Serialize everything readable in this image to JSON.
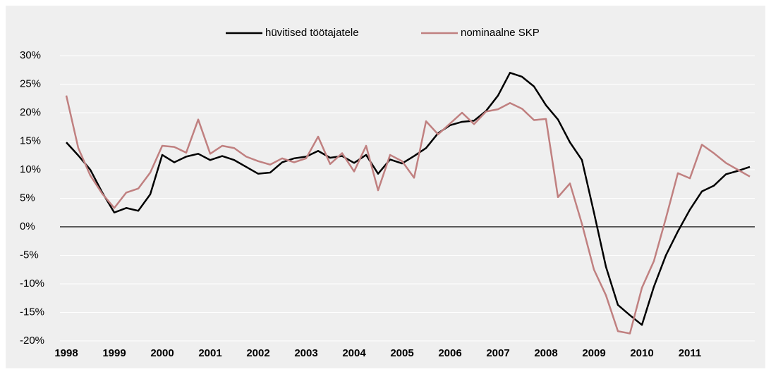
{
  "chart_data": {
    "type": "line",
    "categories": [
      "1998",
      null,
      null,
      null,
      "1999",
      null,
      null,
      null,
      "2000",
      null,
      null,
      null,
      "2001",
      null,
      null,
      null,
      "2002",
      null,
      null,
      null,
      "2003",
      null,
      null,
      null,
      "2004",
      null,
      null,
      null,
      "2005",
      null,
      null,
      null,
      "2006",
      null,
      null,
      null,
      "2007",
      null,
      null,
      null,
      "2008",
      null,
      null,
      null,
      "2009",
      null,
      null,
      null,
      "2010",
      null,
      null,
      null,
      "2011",
      null,
      null,
      null,
      null,
      null
    ],
    "series": [
      {
        "name": "hüvitised töötajatele",
        "color": "#000000",
        "values": [
          14.8,
          12.5,
          10,
          6,
          2.5,
          3.3,
          2.8,
          5.7,
          12.6,
          11.3,
          12.3,
          12.8,
          11.7,
          12.4,
          11.7,
          10.5,
          9.3,
          9.5,
          11.3,
          12,
          12.3,
          13.3,
          12.1,
          12.4,
          11.2,
          12.6,
          9.3,
          11.8,
          11.1,
          12.4,
          13.8,
          16.4,
          17.8,
          18.4,
          18.6,
          20.3,
          23,
          27,
          26.3,
          24.6,
          21.3,
          18.8,
          14.8,
          11.7,
          2.5,
          -7,
          -13.7,
          -15.5,
          -17.2,
          -10.5,
          -5,
          -0.8,
          3,
          6.2,
          7.2,
          9.2,
          9.8,
          10.5
        ]
      },
      {
        "name": "nominaalne SKP",
        "color": "#c08080",
        "values": [
          23,
          13.8,
          9,
          5.8,
          3.3,
          6,
          6.7,
          9.5,
          14.2,
          14,
          13,
          18.8,
          12.8,
          14.2,
          13.8,
          12.3,
          11.5,
          10.9,
          12,
          11.3,
          12,
          15.8,
          11,
          12.9,
          9.7,
          14.2,
          6.4,
          12.6,
          11.5,
          8.6,
          18.5,
          16.2,
          18.1,
          20,
          18,
          20.2,
          20.6,
          21.7,
          20.7,
          18.7,
          18.9,
          5.2,
          7.6,
          0.5,
          -7.5,
          -12,
          -18.3,
          -18.7,
          -10.7,
          -6,
          1.5,
          9.4,
          8.5,
          14.4,
          12.9,
          11.2,
          10,
          8.8
        ]
      }
    ],
    "ylim": [
      -20,
      30
    ],
    "yticks": [
      {
        "value": -20,
        "label": "-20%"
      },
      {
        "value": -15,
        "label": "-15%"
      },
      {
        "value": -10,
        "label": "-10%"
      },
      {
        "value": -5,
        "label": "-5%"
      },
      {
        "value": 0,
        "label": "0%"
      },
      {
        "value": 5,
        "label": "5%"
      },
      {
        "value": 10,
        "label": "10%"
      },
      {
        "value": 15,
        "label": "15%"
      },
      {
        "value": 20,
        "label": "20%"
      },
      {
        "value": 25,
        "label": "25%"
      },
      {
        "value": 30,
        "label": "30%"
      }
    ],
    "grid": true,
    "legend": "top"
  }
}
